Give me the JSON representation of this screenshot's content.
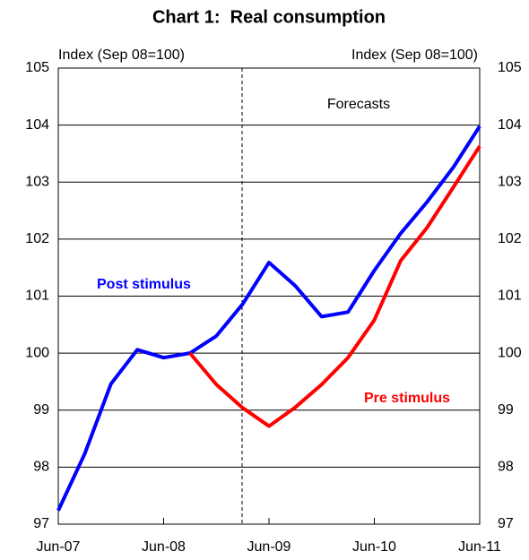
{
  "chart_data": {
    "type": "line",
    "title": "Chart 1:  Real consumption",
    "ylabel": "Index (Sep 08=100)",
    "y2label": "Index (Sep 08=100)",
    "categories": [
      "Jun-07",
      null,
      null,
      null,
      "Jun-08",
      null,
      null,
      null,
      "Jun-09",
      null,
      null,
      null,
      "Jun-10",
      null,
      null,
      null,
      "Jun-11"
    ],
    "series": [
      {
        "name": "Post stimulus",
        "color": "#0000ff",
        "values": [
          97.24,
          98.23,
          99.46,
          100.06,
          99.92,
          100,
          100.3,
          100.86,
          101.59,
          101.18,
          100.64,
          100.72,
          101.45,
          102.1,
          102.65,
          103.26,
          103.98
        ]
      },
      {
        "name": "Pre stimulus",
        "color": "#ff0000",
        "values": [
          null,
          null,
          null,
          null,
          null,
          100,
          99.45,
          99.04,
          98.72,
          99.05,
          99.45,
          99.92,
          100.58,
          101.62,
          102.2,
          102.91,
          103.63
        ]
      }
    ],
    "annotations": [
      "Forecasts"
    ],
    "ylim": [
      97,
      105
    ],
    "yticks": [
      97,
      98,
      99,
      100,
      101,
      102,
      103,
      104,
      105
    ],
    "grid": true
  }
}
